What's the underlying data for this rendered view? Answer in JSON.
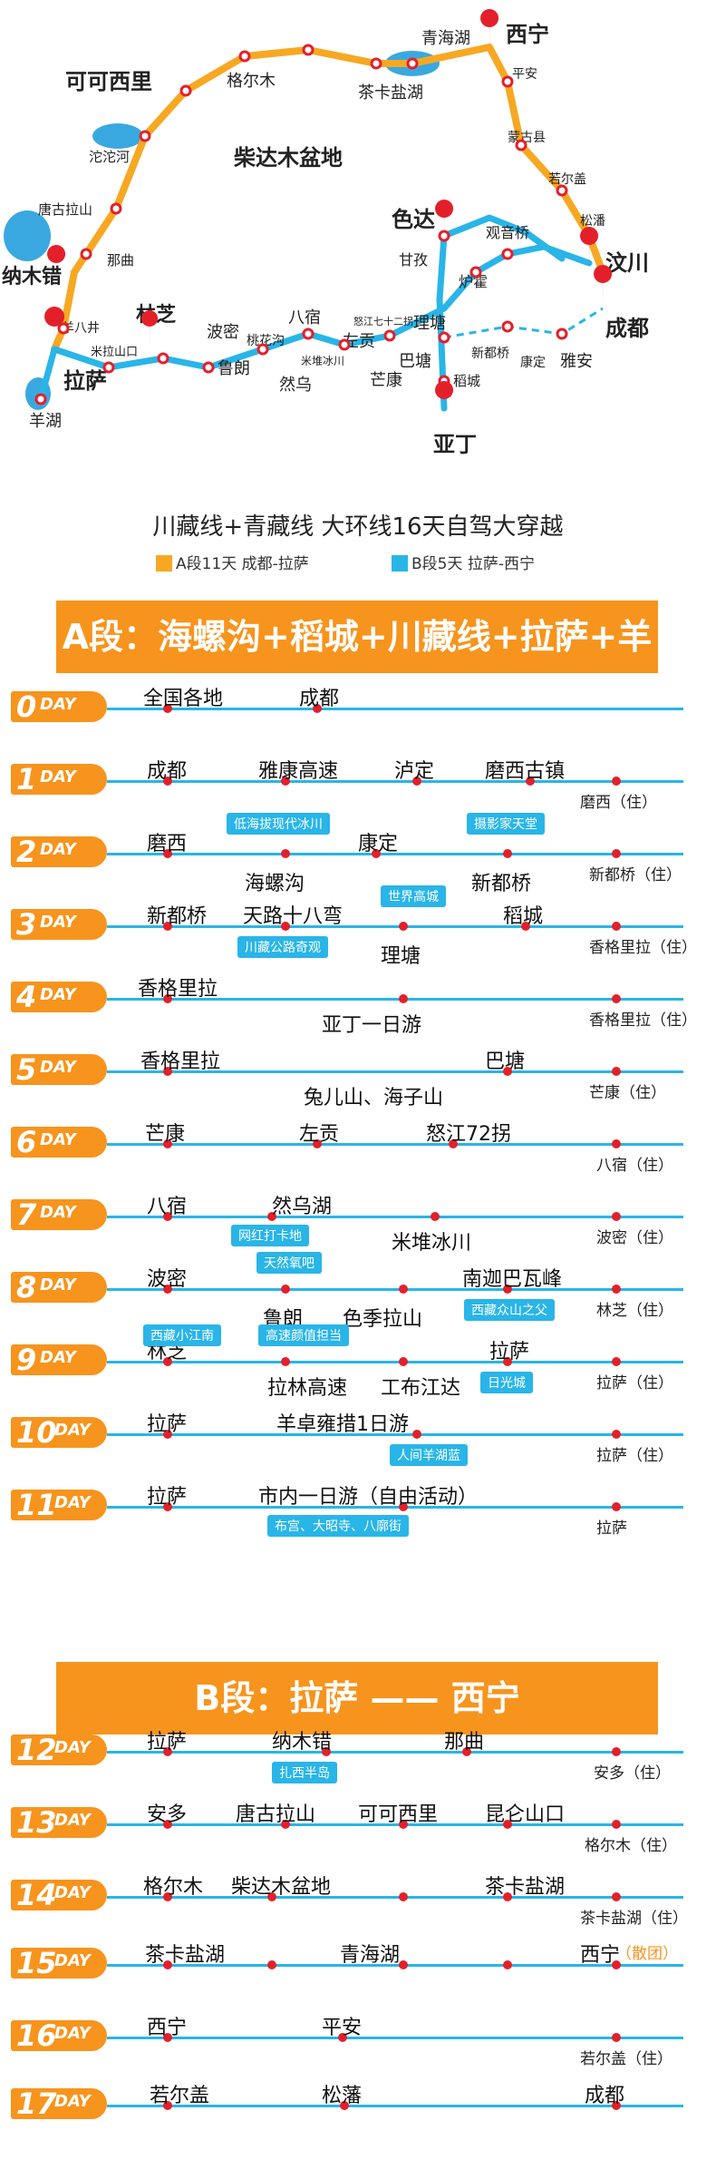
{
  "map": {
    "places": [
      "西宁",
      "青海湖",
      "平安",
      "茶卡盐湖",
      "格尔木",
      "可可西里",
      "柴达木盆地",
      "沱沱河",
      "唐古拉山",
      "那曲",
      "纳木错",
      "羊八井",
      "米拉山口",
      "林芝",
      "拉萨",
      "羊湖",
      "波密",
      "鲁朗",
      "桃花沟",
      "然乌",
      "八宿",
      "米堆冰川",
      "怒江七十二拐",
      "左贡",
      "芒康",
      "理塘",
      "巴塘",
      "亚丁",
      "稻城",
      "新都桥",
      "康定",
      "雅安",
      "成都",
      "汶川",
      "松潘",
      "若尔盖",
      "蒙古县",
      "色达",
      "观音桥",
      "炉霍",
      "甘孜"
    ]
  },
  "title": "川藏线+青藏线 大环线16天自驾大穿越",
  "legend": {
    "a": {
      "label": "A段11天 成都-拉萨",
      "color": "#f7a823"
    },
    "b": {
      "label": "B段5天 拉萨-西宁",
      "color": "#29b5e8"
    }
  },
  "section_a": {
    "title": "A段：海螺沟+稻城+川藏线+拉萨+羊湖"
  },
  "section_b": {
    "title": "B段：拉萨 —— 西宁"
  },
  "days": [
    {
      "num": "0",
      "word": "DAY",
      "labels": [
        "全国各地",
        "成都"
      ],
      "stay": "",
      "tags": []
    },
    {
      "num": "1",
      "word": "DAY",
      "labels": [
        "成都",
        "雅康高速",
        "泸定",
        "磨西古镇"
      ],
      "stay": "磨西（住）",
      "tags": []
    },
    {
      "num": "2",
      "word": "DAY",
      "labels": [
        "磨西",
        "海螺沟",
        "康定",
        "新都桥"
      ],
      "stay": "新都桥（住）",
      "tags": [
        "低海拔现代冰川",
        "摄影家天堂"
      ]
    },
    {
      "num": "3",
      "word": "DAY",
      "labels": [
        "新都桥",
        "天路十八弯",
        "理塘",
        "稻城"
      ],
      "stay": "香格里拉（住）",
      "tags": [
        "世界高城",
        "川藏公路奇观"
      ]
    },
    {
      "num": "4",
      "word": "DAY",
      "labels": [
        "香格里拉",
        "亚丁一日游"
      ],
      "stay": "香格里拉（住）",
      "tags": []
    },
    {
      "num": "5",
      "word": "DAY",
      "labels": [
        "香格里拉",
        "巴塘",
        "兔儿山、海子山"
      ],
      "stay": "芒康（住）",
      "tags": []
    },
    {
      "num": "6",
      "word": "DAY",
      "labels": [
        "芒康",
        "左贡",
        "怒江72拐"
      ],
      "stay": "八宿（住）",
      "tags": []
    },
    {
      "num": "7",
      "word": "DAY",
      "labels": [
        "八宿",
        "然乌湖",
        "米堆冰川"
      ],
      "stay": "波密（住）",
      "tags": [
        "网红打卡地"
      ]
    },
    {
      "num": "8",
      "word": "DAY",
      "labels": [
        "波密",
        "鲁朗",
        "色季拉山",
        "南迦巴瓦峰"
      ],
      "stay": "林芝（住）",
      "tags": [
        "天然氧吧",
        "西藏众山之父"
      ]
    },
    {
      "num": "9",
      "word": "DAY",
      "labels": [
        "林芝",
        "拉林高速",
        "工布江达",
        "拉萨"
      ],
      "stay": "拉萨（住）",
      "tags": [
        "西藏小江南",
        "高速颜值担当",
        "日光城"
      ]
    },
    {
      "num": "10",
      "word": "DAY",
      "labels": [
        "拉萨",
        "羊卓雍措1日游"
      ],
      "stay": "拉萨（住）",
      "tags": [
        "人间羊湖蓝"
      ]
    },
    {
      "num": "11",
      "word": "DAY",
      "labels": [
        "拉萨",
        "市内一日游（自由活动）"
      ],
      "stay": "拉萨",
      "tags": [
        "布宫、大昭寺、八廓街"
      ]
    },
    {
      "num": "12",
      "word": "DAY",
      "labels": [
        "拉萨",
        "纳木错",
        "那曲"
      ],
      "stay": "安多（住）",
      "tags": [
        "扎西半岛"
      ]
    },
    {
      "num": "13",
      "word": "DAY",
      "labels": [
        "安多",
        "唐古拉山",
        "可可西里",
        "昆仑山口"
      ],
      "stay": "格尔木（住）",
      "tags": []
    },
    {
      "num": "14",
      "word": "DAY",
      "labels": [
        "格尔木",
        "柴达木盆地",
        "茶卡盐湖"
      ],
      "stay": "茶卡盐湖（住）",
      "tags": []
    },
    {
      "num": "15",
      "word": "DAY",
      "labels": [
        "茶卡盐湖",
        "青海湖",
        "西宁"
      ],
      "stay": "（散团）",
      "tags": []
    },
    {
      "num": "16",
      "word": "DAY",
      "labels": [
        "西宁",
        "平安"
      ],
      "stay": "若尔盖（住）",
      "tags": []
    },
    {
      "num": "17",
      "word": "DAY",
      "labels": [
        "若尔盖",
        "松藩",
        "成都"
      ],
      "stay": "",
      "tags": []
    }
  ]
}
